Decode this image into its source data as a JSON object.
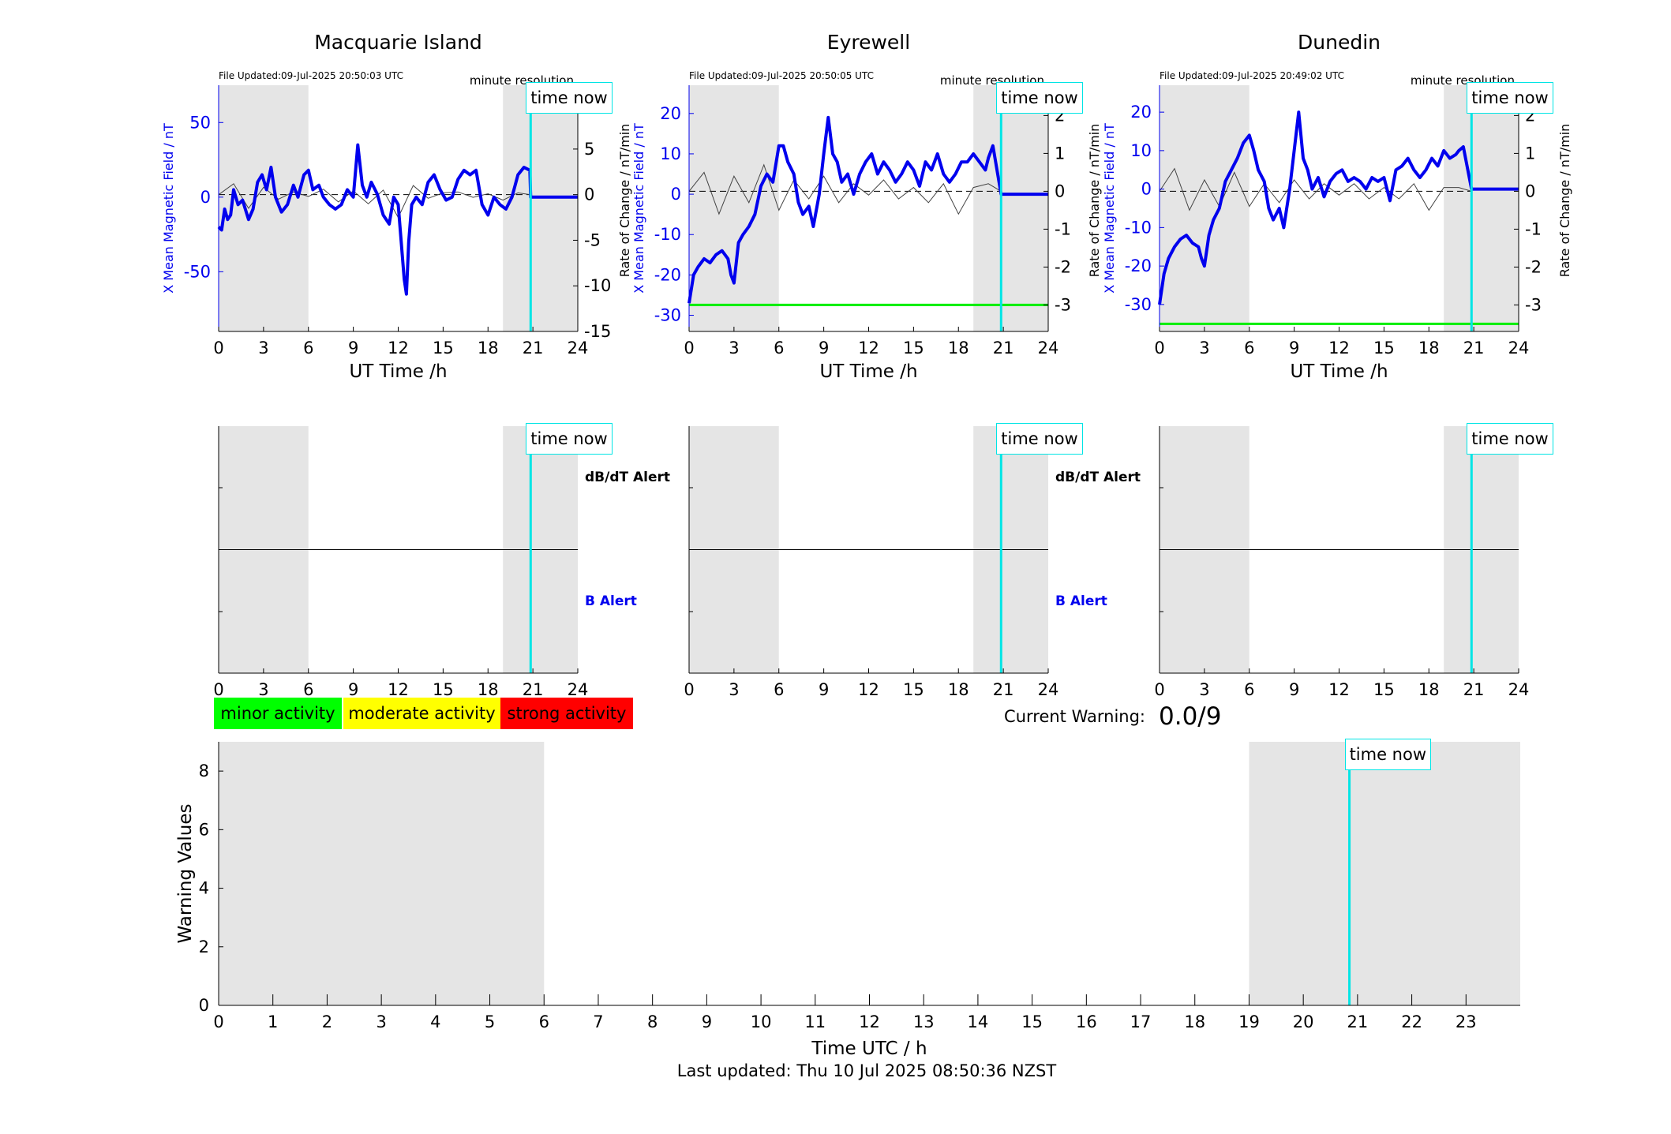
{
  "colors": {
    "field": "#0000ee",
    "rate": "#444444",
    "night": "#e5e5e5",
    "now": "#00e5e5",
    "threshold": "#00ee00",
    "minor": "#00ff00",
    "moderate": "#ffff00",
    "strong": "#ff0000"
  },
  "common": {
    "ut_xlabel": "UT Time /h",
    "time_now_label": "time now",
    "minute_resolution": "minute resolution",
    "x_ticks": [
      0,
      3,
      6,
      9,
      12,
      15,
      18,
      21,
      24
    ],
    "now_hour": 20.85,
    "night_bands": [
      [
        0,
        6
      ],
      [
        19,
        24
      ]
    ],
    "dbdt_alert_label": "dB/dT Alert",
    "b_alert_label": "B Alert"
  },
  "stations": [
    {
      "name": "Macquarie Island",
      "file_updated": "File Updated:09-Jul-2025 20:50:03 UTC",
      "ylabel_left": "X Mean Magnetic Field / nT",
      "ylabel_right": "Rate of Change / nT/min",
      "show_left_ylabel": true,
      "show_right_ylabel": false,
      "show_alert_labels": true
    },
    {
      "name": "Eyrewell",
      "file_updated": "File Updated:09-Jul-2025 20:50:05 UTC",
      "ylabel_left": "X Mean Magnetic Field / nT",
      "ylabel_right": "Rate of Change / nT/min",
      "show_left_ylabel": true,
      "show_right_ylabel": true,
      "show_alert_labels": true
    },
    {
      "name": "Dunedin",
      "file_updated": "File Updated:09-Jul-2025 20:49:02 UTC",
      "ylabel_left": "X Mean Magnetic Field / nT",
      "ylabel_right": "Rate of Change / nT/min",
      "show_left_ylabel": true,
      "show_right_ylabel": true,
      "show_alert_labels": false
    }
  ],
  "legend": {
    "minor": "minor activity",
    "moderate": "moderate activity",
    "strong": "strong activity"
  },
  "current_warning": {
    "label": "Current Warning:",
    "value": "0.0/9"
  },
  "footer": {
    "last_updated": "Last updated: Thu 10 Jul 2025 08:50:36 NZST"
  },
  "chart_data": [
    {
      "type": "line",
      "station": "Macquarie Island",
      "xlim": [
        0,
        24
      ],
      "left_ylim": [
        -90,
        75
      ],
      "left_yticks": [
        -50,
        0,
        50
      ],
      "right_ylim": [
        -15,
        12
      ],
      "right_yticks": [
        -15,
        -10,
        -5,
        0,
        5,
        10
      ],
      "threshold_right": null,
      "field_x": [
        0,
        0.2,
        0.4,
        0.6,
        0.8,
        1,
        1.3,
        1.6,
        2,
        2.3,
        2.6,
        2.9,
        3.2,
        3.5,
        3.8,
        4.2,
        4.6,
        5,
        5.3,
        5.7,
        6,
        6.3,
        6.7,
        7,
        7.4,
        7.8,
        8.2,
        8.6,
        9,
        9.3,
        9.6,
        9.9,
        10.2,
        10.6,
        11,
        11.4,
        11.7,
        12,
        12.2,
        12.4,
        12.55,
        12.7,
        12.9,
        13.2,
        13.6,
        14,
        14.4,
        14.8,
        15.2,
        15.6,
        16,
        16.4,
        16.8,
        17.2,
        17.6,
        18,
        18.4,
        18.8,
        19.2,
        19.6,
        20,
        20.4,
        20.8,
        20.85,
        21,
        22,
        23,
        24
      ],
      "field_y": [
        -20,
        -22,
        -8,
        -15,
        -12,
        5,
        -5,
        -2,
        -15,
        -8,
        10,
        15,
        5,
        20,
        0,
        -10,
        -5,
        8,
        0,
        15,
        18,
        5,
        8,
        0,
        -5,
        -8,
        -5,
        5,
        0,
        35,
        8,
        0,
        10,
        2,
        -12,
        -18,
        0,
        -5,
        -30,
        -55,
        -65,
        -30,
        -5,
        0,
        -5,
        10,
        15,
        5,
        -2,
        0,
        12,
        18,
        15,
        18,
        -5,
        -12,
        0,
        -5,
        -8,
        0,
        15,
        20,
        18,
        0,
        0,
        0,
        0,
        0
      ],
      "rate_x": [
        0,
        1,
        2,
        3,
        4,
        5,
        6,
        7,
        8,
        9,
        10,
        11,
        12,
        13,
        14,
        15,
        16,
        17,
        18,
        19,
        20,
        20.85
      ],
      "rate_y": [
        0,
        1.2,
        -1.5,
        0.8,
        -0.5,
        0.3,
        -0.2,
        0.6,
        -0.8,
        0.4,
        -1.0,
        0.5,
        -2.5,
        1.0,
        -0.4,
        0.2,
        0.3,
        -0.3,
        0.1,
        -0.6,
        0.2,
        0
      ]
    },
    {
      "type": "line",
      "station": "Eyrewell",
      "xlim": [
        0,
        24
      ],
      "left_ylim": [
        -34,
        27
      ],
      "left_yticks": [
        -30,
        -20,
        -10,
        0,
        10,
        20
      ],
      "right_ylim": [
        -3.7,
        2.8
      ],
      "right_yticks": [
        -3,
        -2,
        -1,
        0,
        1,
        2
      ],
      "threshold_right": -3,
      "field_x": [
        0,
        0.3,
        0.6,
        1,
        1.4,
        1.8,
        2.2,
        2.6,
        2.8,
        3,
        3.3,
        3.6,
        4,
        4.4,
        4.8,
        5.2,
        5.6,
        6,
        6.3,
        6.6,
        7,
        7.3,
        7.6,
        8,
        8.3,
        8.7,
        9,
        9.3,
        9.6,
        9.9,
        10.2,
        10.6,
        11,
        11.4,
        11.8,
        12.2,
        12.6,
        13,
        13.4,
        13.8,
        14.2,
        14.6,
        15,
        15.4,
        15.8,
        16.2,
        16.6,
        17,
        17.4,
        17.8,
        18.2,
        18.6,
        19,
        19.4,
        19.8,
        20,
        20.3,
        20.85,
        21,
        22,
        23,
        24
      ],
      "field_y": [
        -27,
        -20,
        -18,
        -16,
        -17,
        -15,
        -14,
        -16,
        -20,
        -22,
        -12,
        -10,
        -8,
        -5,
        2,
        5,
        3,
        12,
        12,
        8,
        5,
        -2,
        -5,
        -3,
        -8,
        0,
        10,
        19,
        10,
        8,
        3,
        5,
        0,
        5,
        8,
        10,
        5,
        8,
        6,
        3,
        5,
        8,
        6,
        2,
        8,
        6,
        10,
        5,
        3,
        5,
        8,
        8,
        10,
        8,
        6,
        9,
        12,
        0,
        0,
        0,
        0,
        0
      ],
      "rate_x": [
        0,
        1,
        2,
        3,
        4,
        5,
        6,
        7,
        8,
        9,
        10,
        11,
        12,
        13,
        14,
        15,
        16,
        17,
        18,
        19,
        20,
        20.85
      ],
      "rate_y": [
        0,
        0.5,
        -0.6,
        0.4,
        -0.3,
        0.7,
        -0.5,
        0.3,
        -0.2,
        0.4,
        -0.3,
        0.2,
        -0.1,
        0.3,
        -0.2,
        0.1,
        -0.3,
        0.2,
        -0.6,
        0.1,
        0.2,
        0
      ]
    },
    {
      "type": "line",
      "station": "Dunedin",
      "xlim": [
        0,
        24
      ],
      "left_ylim": [
        -37,
        27
      ],
      "left_yticks": [
        -30,
        -20,
        -10,
        0,
        10,
        20
      ],
      "right_ylim": [
        -3.7,
        2.8
      ],
      "right_yticks": [
        -3,
        -2,
        -1,
        0,
        1,
        2
      ],
      "threshold_right": -3.5,
      "field_x": [
        0,
        0.3,
        0.6,
        1,
        1.4,
        1.8,
        2.2,
        2.6,
        2.8,
        3,
        3.3,
        3.6,
        4,
        4.4,
        4.8,
        5.2,
        5.6,
        6,
        6.3,
        6.6,
        7,
        7.3,
        7.6,
        8,
        8.3,
        8.7,
        9,
        9.3,
        9.6,
        9.9,
        10.2,
        10.6,
        11,
        11.4,
        11.8,
        12.2,
        12.6,
        13,
        13.4,
        13.8,
        14.2,
        14.6,
        15,
        15.4,
        15.8,
        16.2,
        16.6,
        17,
        17.4,
        17.8,
        18.2,
        18.6,
        19,
        19.4,
        19.8,
        20,
        20.3,
        20.85,
        21,
        22,
        23,
        24
      ],
      "field_y": [
        -30,
        -22,
        -18,
        -15,
        -13,
        -12,
        -14,
        -15,
        -18,
        -20,
        -12,
        -8,
        -5,
        2,
        5,
        8,
        12,
        14,
        10,
        5,
        2,
        -5,
        -8,
        -5,
        -10,
        0,
        10,
        20,
        8,
        5,
        0,
        3,
        -2,
        2,
        4,
        5,
        2,
        3,
        2,
        0,
        3,
        2,
        3,
        -3,
        5,
        6,
        8,
        5,
        3,
        5,
        8,
        6,
        10,
        8,
        9,
        10,
        11,
        0,
        0,
        0,
        0,
        0
      ],
      "rate_x": [
        0,
        1,
        2,
        3,
        4,
        5,
        6,
        7,
        8,
        9,
        10,
        11,
        12,
        13,
        14,
        15,
        16,
        17,
        18,
        19,
        20,
        20.85
      ],
      "rate_y": [
        0,
        0.6,
        -0.5,
        0.3,
        -0.4,
        0.5,
        -0.4,
        0.2,
        -0.3,
        0.3,
        -0.2,
        0.2,
        -0.1,
        0.2,
        -0.2,
        0.1,
        -0.2,
        0.2,
        -0.5,
        0.1,
        0.1,
        0
      ]
    },
    {
      "type": "bar",
      "title": "",
      "xlabel": "Time UTC / h",
      "ylabel": "Warning Values",
      "xlim": [
        0,
        24
      ],
      "ylim": [
        0,
        9
      ],
      "x_ticks": [
        0,
        1,
        2,
        3,
        4,
        5,
        6,
        7,
        8,
        9,
        10,
        11,
        12,
        13,
        14,
        15,
        16,
        17,
        18,
        19,
        20,
        21,
        22,
        23
      ],
      "y_ticks": [
        0,
        2,
        4,
        6,
        8
      ],
      "night_bands": [
        [
          0,
          6
        ],
        [
          19,
          24
        ]
      ],
      "now_hour": 20.85,
      "values": []
    }
  ]
}
